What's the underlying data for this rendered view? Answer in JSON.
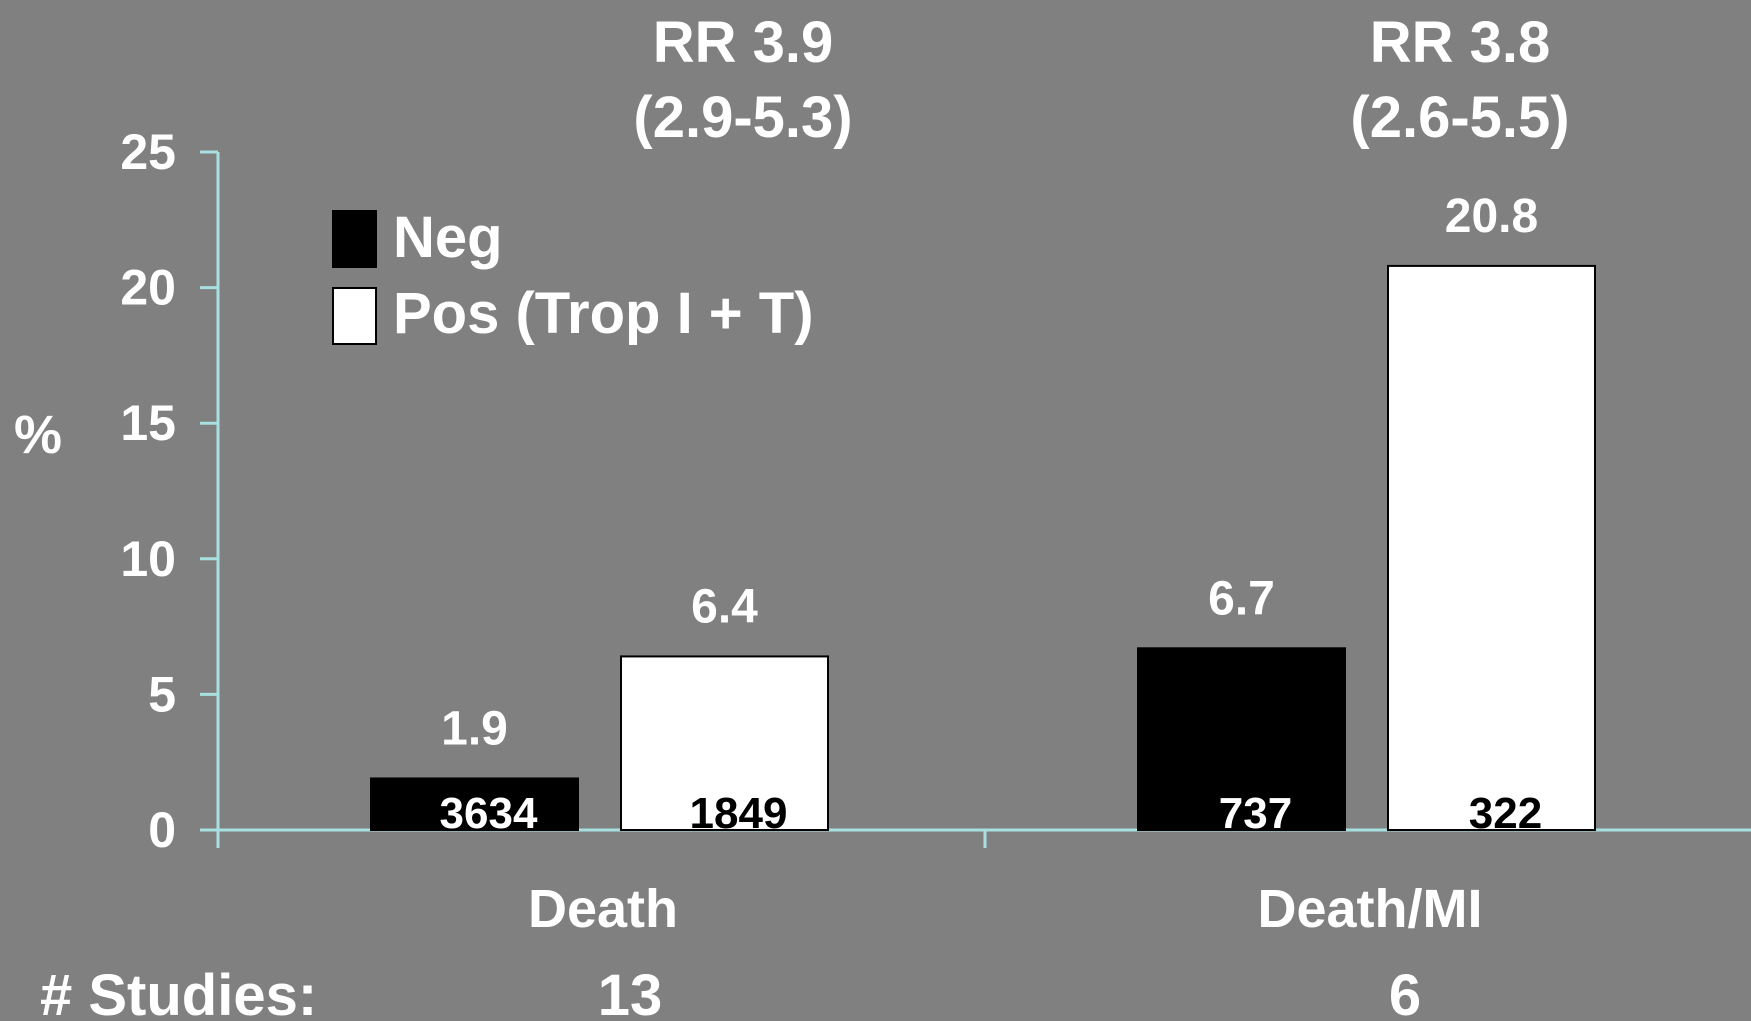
{
  "chart_data": {
    "type": "bar",
    "categories": [
      "Death",
      "Death/MI"
    ],
    "series": [
      {
        "name": "Neg",
        "color": "#000000",
        "values": [
          1.9,
          6.7
        ],
        "n_labels": [
          "3634",
          "737"
        ]
      },
      {
        "name": "Pos (Trop I + T)",
        "color": "#ffffff",
        "values": [
          6.4,
          20.8
        ],
        "n_labels": [
          "1849",
          "322"
        ]
      }
    ],
    "value_labels": [
      [
        "1.9",
        "6.7"
      ],
      [
        "6.4",
        "20.8"
      ]
    ],
    "ylabel": "%",
    "ylim": [
      0,
      25
    ],
    "yticks": [
      "0",
      "5",
      "10",
      "15",
      "20",
      "25"
    ],
    "rr_labels": [
      {
        "line1": "RR 3.9",
        "line2": "(2.9-5.3)"
      },
      {
        "line1": "RR 3.8",
        "line2": "(2.6-5.5)"
      }
    ],
    "studies": {
      "label": "# Studies:",
      "values": [
        "13",
        "6"
      ]
    },
    "legend_position": "top-left",
    "grid": false,
    "axis_color": "#a8e0e0",
    "background": "#808080"
  }
}
